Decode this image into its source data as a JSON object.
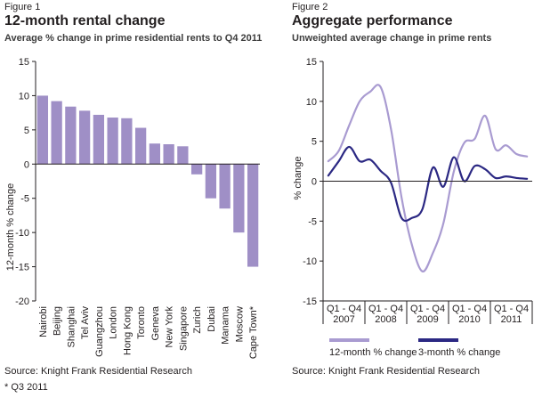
{
  "left": {
    "figure_label": "Figure 1",
    "title": "12-month rental change",
    "subtitle": "Average % change in prime residential rents to Q4 2011",
    "source": "Source: Knight Frank Residential Research",
    "note": "* Q3 2011"
  },
  "right": {
    "figure_label": "Figure 2",
    "title": "Aggregate performance",
    "subtitle": "Unweighted average change in prime rents",
    "source": "Source: Knight Frank Residential Research"
  },
  "chart_data": [
    {
      "type": "bar",
      "title": "12-month rental change",
      "subtitle": "Average % change in prime residential rents to Q4 2011",
      "ylabel": "12-month % change",
      "ylim": [
        -20,
        15
      ],
      "yticks": [
        15,
        10,
        5,
        0,
        -5,
        -10,
        -15,
        -20
      ],
      "grid": false,
      "color": "#9f8fc6",
      "categories": [
        "Nairobi",
        "Beijing",
        "Shanghai",
        "Tel Aviv",
        "Guangzhou",
        "London",
        "Hong Kong",
        "Toronto",
        "Geneva",
        "New York",
        "Singapore",
        "Zurich",
        "Dubai",
        "Manama",
        "Moscow",
        "Cape Town*"
      ],
      "values": [
        10.0,
        9.2,
        8.4,
        7.8,
        7.2,
        6.8,
        6.7,
        5.3,
        3.0,
        2.9,
        2.6,
        -1.5,
        -5.0,
        -6.5,
        -10.0,
        -15.0
      ]
    },
    {
      "type": "line",
      "title": "Aggregate performance",
      "subtitle": "Unweighted average change in prime rents",
      "ylabel": "% change",
      "ylim": [
        -15,
        15
      ],
      "yticks": [
        15,
        10,
        5,
        0,
        -5,
        -10,
        -15
      ],
      "grid": false,
      "legend": "bottom",
      "x": [
        "2007 Q1",
        "2007 Q2",
        "2007 Q3",
        "2007 Q4",
        "2008 Q1",
        "2008 Q2",
        "2008 Q3",
        "2008 Q4",
        "2009 Q1",
        "2009 Q2",
        "2009 Q3",
        "2009 Q4",
        "2010 Q1",
        "2010 Q2",
        "2010 Q3",
        "2010 Q4",
        "2011 Q1",
        "2011 Q2",
        "2011 Q3",
        "2011 Q4"
      ],
      "x_tick_labels": [
        "Q1 - Q4",
        "Q1 - Q4",
        "Q1 - Q4",
        "Q1 - Q4",
        "Q1 - Q4"
      ],
      "x_group_labels": [
        "2007",
        "2008",
        "2009",
        "2010",
        "2011"
      ],
      "series": [
        {
          "name": "12-month % change",
          "color": "#a99bd1",
          "values": [
            2.5,
            3.8,
            7.0,
            10.0,
            11.2,
            11.8,
            6.5,
            -2.0,
            -8.0,
            -11.3,
            -9.0,
            -5.3,
            1.2,
            4.8,
            5.3,
            8.2,
            4.0,
            4.5,
            3.4,
            3.1
          ]
        },
        {
          "name": "3-month % change",
          "color": "#2b2883",
          "values": [
            0.7,
            2.5,
            4.3,
            2.5,
            2.7,
            1.3,
            -0.2,
            -4.6,
            -4.6,
            -3.5,
            1.7,
            -0.7,
            3.0,
            0.0,
            1.9,
            1.5,
            0.4,
            0.6,
            0.4,
            0.3
          ]
        }
      ]
    }
  ]
}
